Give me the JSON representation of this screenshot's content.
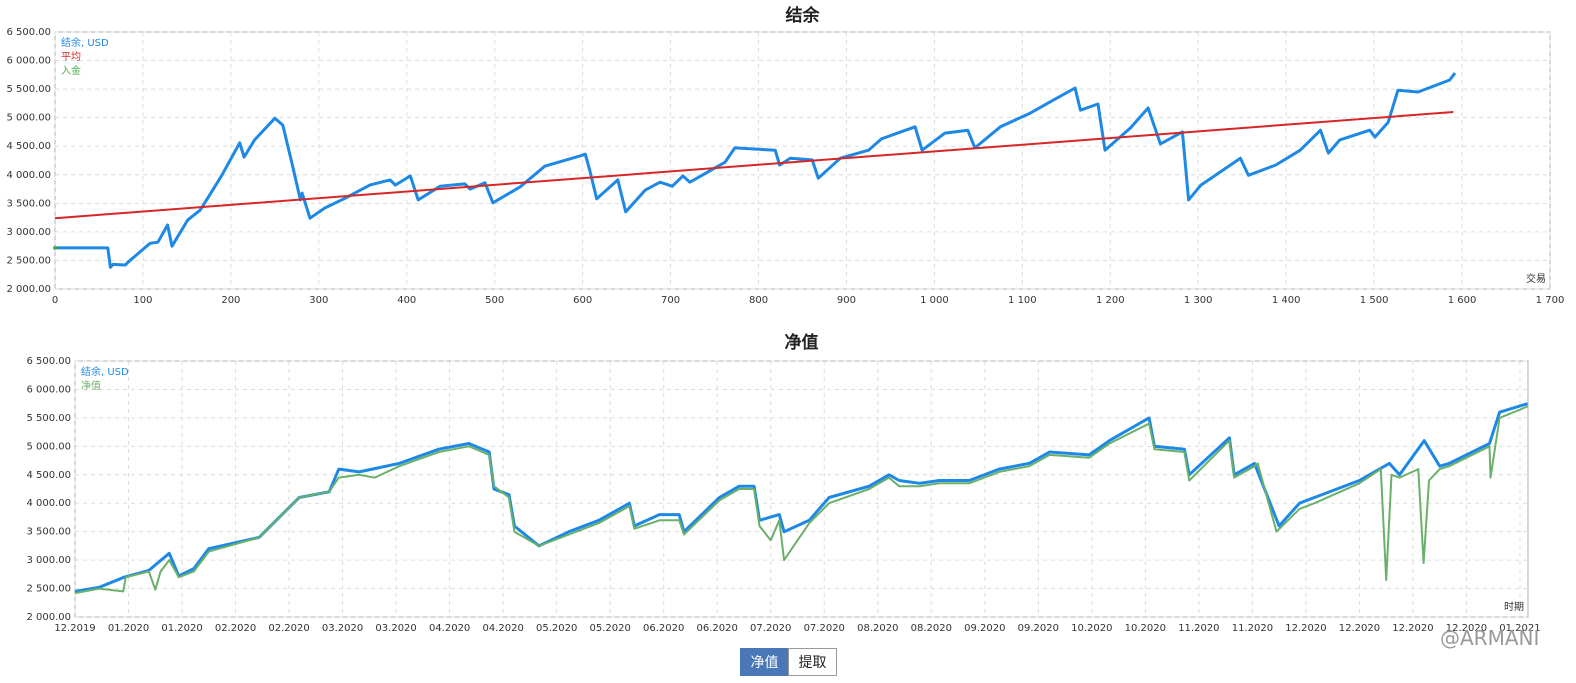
{
  "chart_data": [
    {
      "type": "line",
      "title": "结余",
      "x_label": "交易",
      "legend": "top-left",
      "grid": true,
      "xlim": [
        0,
        1700
      ],
      "xticks": [
        0,
        100,
        200,
        300,
        400,
        500,
        600,
        700,
        800,
        900,
        {
          "value": 1000,
          "label": "1 000"
        },
        {
          "value": 1100,
          "label": "1 100"
        },
        {
          "value": 1200,
          "label": "1 200"
        },
        {
          "value": 1300,
          "label": "1 300"
        },
        {
          "value": 1400,
          "label": "1 400"
        },
        {
          "value": 1500,
          "label": "1 500"
        },
        {
          "value": 1600,
          "label": "1 600"
        },
        {
          "value": 1700,
          "label": "1 700"
        }
      ],
      "ylim": [
        2000,
        6500
      ],
      "yticks": [
        {
          "value": 2000,
          "label": "2 000.00"
        },
        {
          "value": 2500,
          "label": "2 500.00"
        },
        {
          "value": 3000,
          "label": "3 000.00"
        },
        {
          "value": 3500,
          "label": "3 500.00"
        },
        {
          "value": 4000,
          "label": "4 000.00"
        },
        {
          "value": 4500,
          "label": "4 500.00"
        },
        {
          "value": 5000,
          "label": "5 000.00"
        },
        {
          "value": 5500,
          "label": "5 500.00"
        },
        {
          "value": 6000,
          "label": "6 000.00"
        },
        {
          "value": 6500,
          "label": "6 500.00"
        }
      ],
      "series": [
        {
          "name": "结余, USD",
          "color": "#1e88e5",
          "x": [
            0,
            60,
            63,
            66,
            80,
            83,
            108,
            117,
            128,
            133,
            151,
            165,
            176,
            190,
            210,
            215,
            227,
            250,
            259,
            270,
            279,
            281,
            290,
            307,
            330,
            358,
            381,
            387,
            404,
            413,
            438,
            466,
            472,
            489,
            498,
            529,
            557,
            597,
            603,
            608,
            616,
            640,
            649,
            671,
            688,
            702,
            714,
            722,
            762,
            773,
            819,
            824,
            836,
            861,
            868,
            893,
            925,
            940,
            978,
            986,
            1012,
            1038,
            1046,
            1075,
            1109,
            1131,
            1160,
            1166,
            1186,
            1194,
            1223,
            1243,
            1257,
            1282,
            1289,
            1303,
            1348,
            1357,
            1388,
            1416,
            1439,
            1448,
            1461,
            1495,
            1501,
            1516,
            1527,
            1550,
            1586,
            1592
          ],
          "values": [
            2720,
            2720,
            2380,
            2430,
            2420,
            2470,
            2800,
            2820,
            3120,
            2750,
            3210,
            3380,
            3650,
            4000,
            4560,
            4310,
            4610,
            4990,
            4870,
            4170,
            3560,
            3680,
            3240,
            3420,
            3590,
            3820,
            3910,
            3820,
            3980,
            3560,
            3800,
            3840,
            3750,
            3860,
            3510,
            3790,
            4150,
            4330,
            4360,
            4080,
            3580,
            3910,
            3350,
            3730,
            3870,
            3800,
            3980,
            3870,
            4220,
            4470,
            4430,
            4170,
            4290,
            4260,
            3940,
            4290,
            4430,
            4630,
            4840,
            4430,
            4730,
            4780,
            4470,
            4840,
            5080,
            5270,
            5520,
            5130,
            5240,
            4430,
            4820,
            5170,
            4540,
            4750,
            3560,
            3820,
            4290,
            3990,
            4170,
            4430,
            4780,
            4380,
            4610,
            4780,
            4660,
            4920,
            5480,
            5450,
            5660,
            5780
          ]
        },
        {
          "name": "平均",
          "color": "#d62728",
          "x": [
            0,
            1590
          ],
          "values": [
            3240,
            5100
          ]
        },
        {
          "name": "入金",
          "color": "#4caf50",
          "x": [
            0
          ],
          "values": [
            2720
          ]
        }
      ]
    },
    {
      "type": "line",
      "title": "净值",
      "x_label": "时期",
      "legend": "top-left",
      "grid": true,
      "xlim": [
        0,
        27.15
      ],
      "xticks": [
        {
          "value": 0,
          "label": "12.2019"
        },
        {
          "value": 1,
          "label": "01.2020"
        },
        {
          "value": 2,
          "label": "01.2020"
        },
        {
          "value": 3,
          "label": "02.2020"
        },
        {
          "value": 4,
          "label": "02.2020"
        },
        {
          "value": 5,
          "label": "03.2020"
        },
        {
          "value": 6,
          "label": "03.2020"
        },
        {
          "value": 7,
          "label": "04.2020"
        },
        {
          "value": 8,
          "label": "04.2020"
        },
        {
          "value": 9,
          "label": "05.2020"
        },
        {
          "value": 10,
          "label": "05.2020"
        },
        {
          "value": 11,
          "label": "06.2020"
        },
        {
          "value": 12,
          "label": "06.2020"
        },
        {
          "value": 13,
          "label": "07.2020"
        },
        {
          "value": 14,
          "label": "07.2020"
        },
        {
          "value": 15,
          "label": "08.2020"
        },
        {
          "value": 16,
          "label": "08.2020"
        },
        {
          "value": 17,
          "label": "09.2020"
        },
        {
          "value": 18,
          "label": "09.2020"
        },
        {
          "value": 19,
          "label": "10.2020"
        },
        {
          "value": 20,
          "label": "10.2020"
        },
        {
          "value": 21,
          "label": "11.2020"
        },
        {
          "value": 22,
          "label": "11.2020"
        },
        {
          "value": 23,
          "label": "12.2020"
        },
        {
          "value": 24,
          "label": "12.2020"
        },
        {
          "value": 25,
          "label": "12.2020"
        },
        {
          "value": 26,
          "label": "12.2020"
        },
        {
          "value": 27,
          "label": "01.2021"
        }
      ],
      "ylim": [
        2000,
        6500
      ],
      "yticks": [
        {
          "value": 2000,
          "label": "2 000.00"
        },
        {
          "value": 2500,
          "label": "2 500.00"
        },
        {
          "value": 3000,
          "label": "3 000.00"
        },
        {
          "value": 3500,
          "label": "3 500.00"
        },
        {
          "value": 4000,
          "label": "4 000.00"
        },
        {
          "value": 4500,
          "label": "4 500.00"
        },
        {
          "value": 5000,
          "label": "5 000.00"
        },
        {
          "value": 5500,
          "label": "5 500.00"
        },
        {
          "value": 6000,
          "label": "6 000.00"
        },
        {
          "value": 6500,
          "label": "6 500.00"
        }
      ],
      "series": [
        {
          "name": "结余, USD",
          "color": "#1e88e5",
          "x": [
            0,
            0.45,
            0.92,
            1.38,
            1.76,
            1.94,
            2.22,
            2.5,
            3.44,
            4.19,
            4.75,
            4.93,
            5.31,
            6.06,
            6.8,
            7.36,
            7.74,
            7.83,
            8.11,
            8.21,
            8.67,
            9.23,
            9.79,
            10.17,
            10.36,
            10.45,
            10.92,
            11.29,
            11.38,
            12.04,
            12.41,
            12.69,
            12.79,
            13.16,
            13.25,
            13.72,
            14.09,
            14.84,
            15.21,
            15.4,
            15.78,
            16.15,
            16.71,
            17.27,
            17.83,
            18.21,
            18.95,
            19.33,
            20.07,
            20.17,
            20.73,
            20.82,
            21.57,
            21.66,
            22.04,
            22.5,
            22.88,
            23.16,
            24.0,
            24.56,
            24.75,
            25.21,
            25.5,
            25.68,
            26.43,
            26.62,
            27.14
          ],
          "values": [
            2450,
            2520,
            2700,
            2820,
            3120,
            2720,
            2850,
            3200,
            3400,
            4100,
            4200,
            4600,
            4550,
            4700,
            4950,
            5050,
            4900,
            4250,
            4150,
            3600,
            3250,
            3500,
            3700,
            3900,
            4000,
            3600,
            3800,
            3800,
            3500,
            4100,
            4300,
            4300,
            3700,
            3800,
            3500,
            3700,
            4100,
            4300,
            4500,
            4400,
            4350,
            4400,
            4400,
            4600,
            4700,
            4900,
            4850,
            5100,
            5500,
            5000,
            4950,
            4500,
            5150,
            4500,
            4700,
            3600,
            4000,
            4100,
            4400,
            4700,
            4500,
            5100,
            4650,
            4700,
            5050,
            5600,
            5750
          ]
        },
        {
          "name": "净值",
          "color": "#6ab06a",
          "x": [
            0,
            0.45,
            0.9,
            0.95,
            1.38,
            1.5,
            1.6,
            1.76,
            1.94,
            2.22,
            2.5,
            3.44,
            4.19,
            4.75,
            4.93,
            5.31,
            5.6,
            6.06,
            6.8,
            7.36,
            7.74,
            7.83,
            8.11,
            8.21,
            8.67,
            9.23,
            9.79,
            10.17,
            10.36,
            10.45,
            10.92,
            11.29,
            11.38,
            12.04,
            12.41,
            12.69,
            12.79,
            13.0,
            13.16,
            13.25,
            13.72,
            14.09,
            14.84,
            15.21,
            15.4,
            15.78,
            16.15,
            16.71,
            17.27,
            17.83,
            18.21,
            18.95,
            19.33,
            20.07,
            20.17,
            20.73,
            20.82,
            21.57,
            21.66,
            22.04,
            22.1,
            22.45,
            22.88,
            23.16,
            24.0,
            24.4,
            24.5,
            24.6,
            24.75,
            25.1,
            25.2,
            25.3,
            25.5,
            25.68,
            26.43,
            26.45,
            26.62,
            27.14
          ],
          "values": [
            2420,
            2500,
            2450,
            2700,
            2800,
            2480,
            2800,
            3000,
            2700,
            2800,
            3150,
            3400,
            4100,
            4200,
            4450,
            4500,
            4450,
            4650,
            4900,
            5000,
            4850,
            4300,
            4100,
            3500,
            3250,
            3450,
            3650,
            3850,
            3950,
            3550,
            3700,
            3700,
            3450,
            4050,
            4250,
            4250,
            3600,
            3350,
            3700,
            3000,
            3650,
            4000,
            4250,
            4450,
            4300,
            4300,
            4350,
            4350,
            4550,
            4650,
            4850,
            4800,
            5050,
            5400,
            4950,
            4900,
            4400,
            5100,
            4450,
            4650,
            4700,
            3500,
            3900,
            4000,
            4350,
            4600,
            2650,
            4500,
            4450,
            4600,
            2950,
            4400,
            4600,
            4650,
            5000,
            4450,
            5500,
            5700
          ]
        }
      ]
    }
  ],
  "buttons": [
    "净值",
    "提取"
  ],
  "watermark": "@ARMANI"
}
